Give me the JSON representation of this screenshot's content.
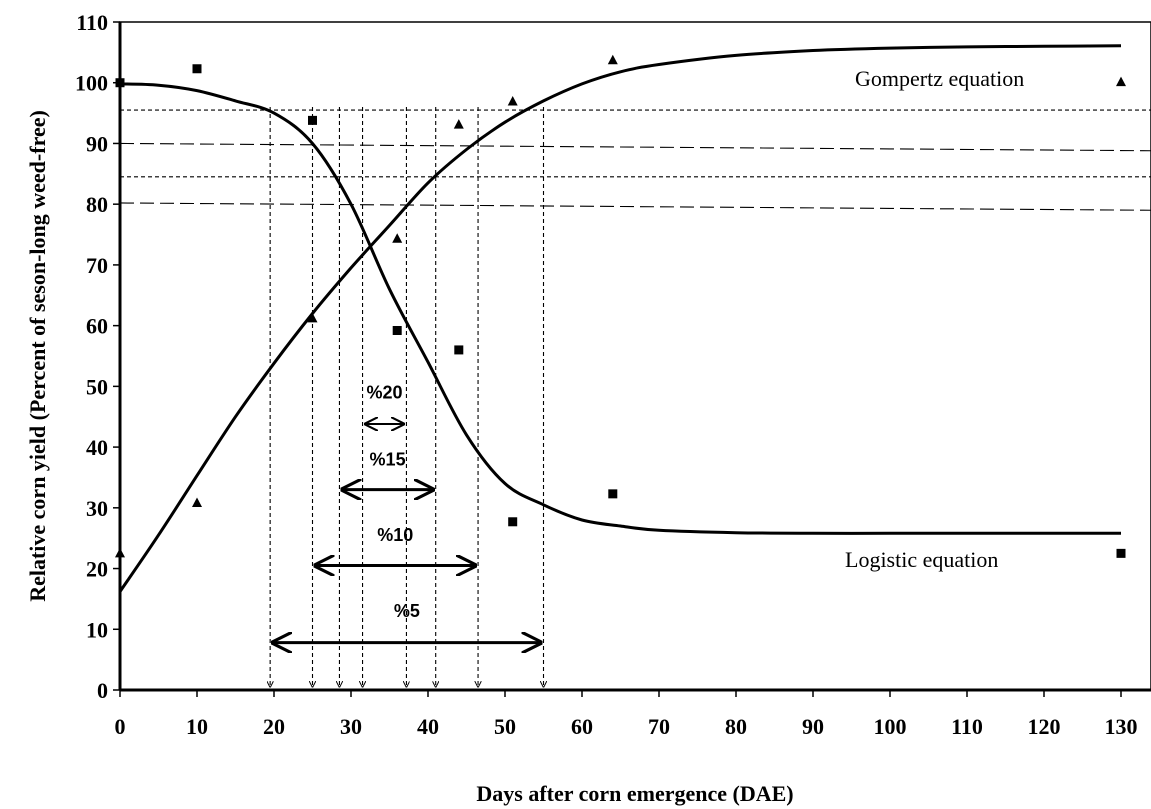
{
  "chart_data": {
    "type": "scatter",
    "xlabel": "Days after corn emergence (DAE)",
    "ylabel": "Relative corn yield (Percent of seson-long weed-free)",
    "xlim": [
      0,
      132
    ],
    "ylim": [
      0,
      110
    ],
    "x_ticks": [
      0,
      10,
      20,
      30,
      40,
      50,
      60,
      70,
      80,
      90,
      100,
      110,
      120,
      130
    ],
    "y_ticks": [
      0,
      10,
      20,
      30,
      40,
      50,
      60,
      70,
      80,
      90,
      100,
      110
    ],
    "grid": false,
    "series": [
      {
        "name": "Gompertz equation",
        "marker": "triangle",
        "points": [
          [
            0,
            22.5
          ],
          [
            10,
            30.8
          ],
          [
            25,
            61.2
          ],
          [
            36,
            74.3
          ],
          [
            44,
            93.1
          ],
          [
            51,
            96.9
          ],
          [
            64,
            103.7
          ],
          [
            130,
            100.1
          ]
        ],
        "curve": [
          [
            0,
            16.2
          ],
          [
            5,
            25.5
          ],
          [
            10,
            35.3
          ],
          [
            15,
            45
          ],
          [
            20,
            53.8
          ],
          [
            25,
            62
          ],
          [
            30,
            69.5
          ],
          [
            35,
            76.5
          ],
          [
            40,
            83.5
          ],
          [
            45,
            89
          ],
          [
            50,
            93.5
          ],
          [
            55,
            97
          ],
          [
            60,
            99.8
          ],
          [
            65,
            101.8
          ],
          [
            70,
            103
          ],
          [
            80,
            104.5
          ],
          [
            90,
            105.3
          ],
          [
            100,
            105.7
          ],
          [
            110,
            105.9
          ],
          [
            120,
            106
          ],
          [
            130,
            106.1
          ]
        ]
      },
      {
        "name": "Logistic equation",
        "marker": "square",
        "points": [
          [
            0,
            100
          ],
          [
            10,
            102.3
          ],
          [
            25,
            93.8
          ],
          [
            36,
            59.2
          ],
          [
            44,
            56
          ],
          [
            51,
            27.7
          ],
          [
            64,
            32.3
          ],
          [
            130,
            22.5
          ]
        ],
        "curve": [
          [
            0,
            99.8
          ],
          [
            5,
            99.6
          ],
          [
            10,
            98.7
          ],
          [
            15,
            97
          ],
          [
            20,
            95
          ],
          [
            25,
            90
          ],
          [
            30,
            80
          ],
          [
            35,
            66
          ],
          [
            40,
            54
          ],
          [
            45,
            42
          ],
          [
            50,
            34
          ],
          [
            55,
            30.5
          ],
          [
            60,
            28
          ],
          [
            65,
            27
          ],
          [
            70,
            26.3
          ],
          [
            80,
            25.9
          ],
          [
            90,
            25.8
          ],
          [
            100,
            25.8
          ],
          [
            110,
            25.8
          ],
          [
            120,
            25.8
          ],
          [
            130,
            25.8
          ]
        ]
      }
    ],
    "reference_lines": [
      {
        "y": 95.5,
        "style": "dotted"
      },
      {
        "y": 84.5,
        "style": "dotted"
      },
      {
        "y_start": 90,
        "y_end": 88.8,
        "style": "dashed"
      },
      {
        "y_start": 80.2,
        "y_end": 79,
        "style": "dashed"
      }
    ],
    "drop_lines_x": [
      19.5,
      25,
      28.5,
      31.5,
      37.2,
      41,
      46.5,
      55
    ],
    "annotations": [
      {
        "label": "%20",
        "from": 31.5,
        "to": 37.2,
        "y": 43.8,
        "label_y": 48
      },
      {
        "label": "%15",
        "from": 28.5,
        "to": 41,
        "y": 33,
        "label_y": 37
      },
      {
        "label": "%10",
        "from": 25,
        "to": 46.5,
        "y": 20.5,
        "label_y": 24.5
      },
      {
        "label": "%5",
        "from": 19.5,
        "to": 55,
        "y": 7.8,
        "label_y": 12
      }
    ]
  }
}
